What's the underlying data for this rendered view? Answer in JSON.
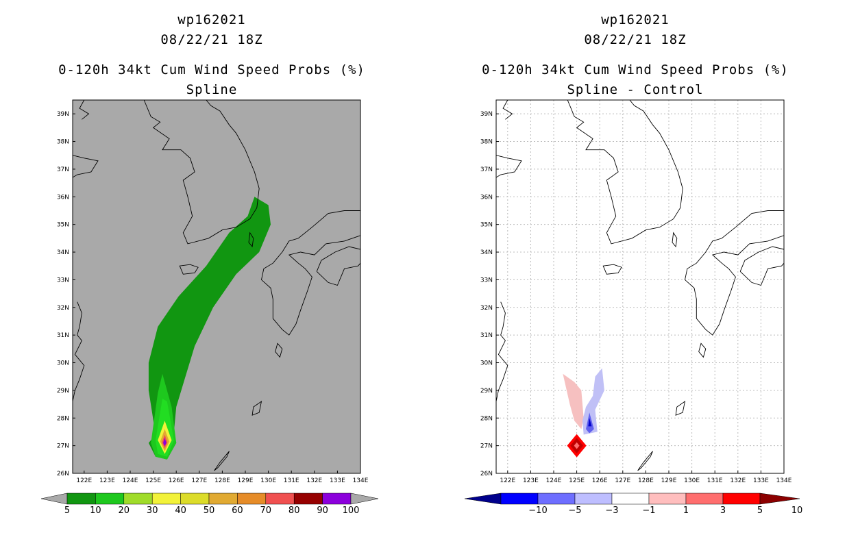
{
  "chart_data": [
    {
      "type": "heatmap",
      "title": [
        "wp162021",
        "08/22/21 18Z",
        "0-120h 34kt Cum Wind Speed Probs (%)",
        "Spline"
      ],
      "x_axis": {
        "range": [
          121.5,
          134
        ],
        "ticks": [
          122,
          123,
          124,
          125,
          126,
          127,
          128,
          129,
          130,
          131,
          132,
          133,
          134
        ],
        "tick_labels": [
          "122E",
          "123E",
          "124E",
          "125E",
          "126E",
          "127E",
          "128E",
          "129E",
          "130E",
          "131E",
          "132E",
          "133E",
          "134E"
        ]
      },
      "y_axis": {
        "range": [
          26,
          39.5
        ],
        "ticks": [
          26,
          27,
          28,
          29,
          30,
          31,
          32,
          33,
          34,
          35,
          36,
          37,
          38,
          39
        ],
        "tick_labels": [
          "26N",
          "27N",
          "28N",
          "29N",
          "30N",
          "31N",
          "32N",
          "33N",
          "34N",
          "35N",
          "36N",
          "37N",
          "38N",
          "39N"
        ]
      },
      "background": "#a9a9a9",
      "grid": false,
      "colorbar": {
        "labels": [
          "5",
          "10",
          "20",
          "30",
          "40",
          "50",
          "60",
          "70",
          "80",
          "90",
          "100"
        ],
        "colors": [
          "#119611",
          "#1ec81e",
          "#a0dc2a",
          "#f2f23a",
          "#dcdc2a",
          "#e1aa32",
          "#e68c28",
          "#f05050",
          "#960000",
          "#8c00dc"
        ]
      },
      "max_probability_center": {
        "lon": 125.5,
        "lat": 27.1
      }
    },
    {
      "type": "heatmap",
      "title": [
        "wp162021",
        "08/22/21 18Z",
        "0-120h 34kt Cum Wind Speed Probs (%)",
        "Spline - Control"
      ],
      "x_axis": {
        "range": [
          121.5,
          134
        ],
        "ticks": [
          122,
          123,
          124,
          125,
          126,
          127,
          128,
          129,
          130,
          131,
          132,
          133,
          134
        ],
        "tick_labels": [
          "122E",
          "123E",
          "124E",
          "125E",
          "126E",
          "127E",
          "128E",
          "129E",
          "130E",
          "131E",
          "132E",
          "133E",
          "134E"
        ]
      },
      "y_axis": {
        "range": [
          26,
          39.5
        ],
        "ticks": [
          26,
          27,
          28,
          29,
          30,
          31,
          32,
          33,
          34,
          35,
          36,
          37,
          38,
          39
        ],
        "tick_labels": [
          "26N",
          "27N",
          "28N",
          "29N",
          "30N",
          "31N",
          "32N",
          "33N",
          "34N",
          "35N",
          "36N",
          "37N",
          "38N",
          "39N"
        ]
      },
      "background": "#ffffff",
      "grid": true,
      "colorbar": {
        "labels": [
          "-10",
          "-5",
          "-3",
          "-1",
          "1",
          "3",
          "5",
          "10"
        ],
        "colors": [
          "#00008c",
          "#0000ff",
          "#6e6eff",
          "#bebeff",
          "#ffffff",
          "#ffbebe",
          "#ff6e6e",
          "#ff0000",
          "#8c0000"
        ]
      },
      "difference_features": [
        {
          "sign": "positive",
          "lon_range": [
            124.5,
            125.3
          ],
          "lat_range": [
            27.6,
            29.6
          ]
        },
        {
          "sign": "negative",
          "lon_range": [
            125.3,
            126.2
          ],
          "lat_range": [
            27.3,
            29.8
          ]
        },
        {
          "sign": "positive_max",
          "lon": 125.0,
          "lat": 27.0
        }
      ]
    }
  ]
}
